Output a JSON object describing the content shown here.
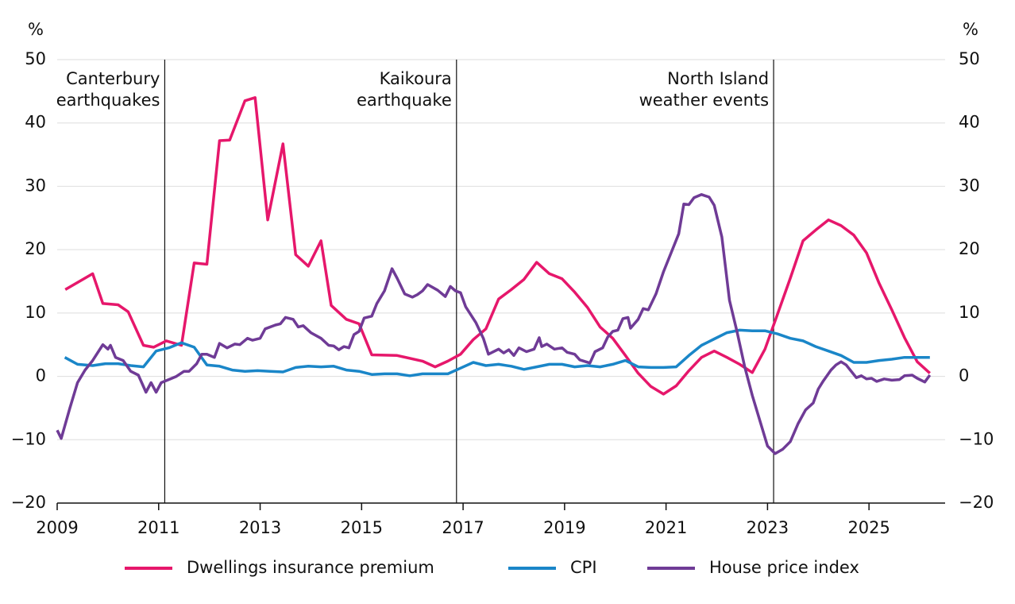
{
  "chart_data": {
    "type": "line",
    "y_unit": "%",
    "y2_unit": "%",
    "xlim": [
      2009,
      2026.5
    ],
    "xticks": [
      2009,
      2011,
      2013,
      2015,
      2017,
      2019,
      2021,
      2023,
      2025
    ],
    "ylim": [
      -20,
      50
    ],
    "yticks": [
      {
        "value": -20,
        "label": "−20"
      },
      {
        "value": -10,
        "label": "−10"
      },
      0,
      10,
      20,
      30,
      40,
      50
    ],
    "y2lim": [
      -20,
      50
    ],
    "y2ticks": [
      {
        "value": -20,
        "label": "−20"
      },
      {
        "value": -10,
        "label": "−10"
      },
      0,
      10,
      20,
      30,
      40,
      50
    ],
    "grid": true,
    "legend": "bottom",
    "annotations": [
      {
        "x": 2011.12,
        "text": [
          "Canterbury",
          "earthquakes"
        ]
      },
      {
        "x": 2016.87,
        "text": [
          "Kaikoura",
          "earthquake"
        ]
      },
      {
        "x": 2023.12,
        "text": [
          "North Island",
          "weather events"
        ]
      }
    ],
    "series": [
      {
        "name": "Dwellings insurance premium",
        "color": "#e6176b",
        "x": [
          2009.16,
          2009.7,
          2009.9,
          2010.2,
          2010.4,
          2010.7,
          2010.9,
          2011.15,
          2011.45,
          2011.7,
          2011.95,
          2012.2,
          2012.4,
          2012.7,
          2012.9,
          2013.15,
          2013.45,
          2013.7,
          2013.95,
          2014.2,
          2014.4,
          2014.7,
          2014.95,
          2015.2,
          2015.7,
          2016.2,
          2016.45,
          2016.7,
          2016.95,
          2017.2,
          2017.45,
          2017.7,
          2017.95,
          2018.2,
          2018.45,
          2018.7,
          2018.95,
          2019.2,
          2019.45,
          2019.7,
          2019.95,
          2020.2,
          2020.45,
          2020.7,
          2020.95,
          2021.2,
          2021.45,
          2021.7,
          2021.95,
          2022.2,
          2022.45,
          2022.7,
          2022.95,
          2023.2,
          2023.45,
          2023.7,
          2023.95,
          2024.2,
          2024.45,
          2024.7,
          2024.95,
          2025.2,
          2025.45,
          2025.7,
          2025.95,
          2026.2
        ],
        "values": [
          13.7,
          16.2,
          11.5,
          11.3,
          10.2,
          4.9,
          4.6,
          5.6,
          4.9,
          17.9,
          17.7,
          37.2,
          37.3,
          43.5,
          44,
          24.7,
          36.7,
          19.2,
          17.4,
          21.4,
          11.2,
          9.0,
          8.3,
          3.4,
          3.3,
          2.4,
          1.5,
          2.4,
          3.5,
          5.8,
          7.5,
          12.2,
          13.7,
          15.3,
          18,
          16.2,
          15.4,
          13.3,
          10.9,
          7.8,
          6.0,
          3.3,
          0.5,
          -1.6,
          -2.8,
          -1.5,
          0.9,
          3.0,
          4.0,
          3.0,
          1.9,
          0.6,
          4.3,
          9.9,
          15.5,
          21.4,
          23.1,
          24.7,
          23.8,
          22.3,
          19.5,
          14.7,
          10.5,
          6.1,
          2.3,
          0.5
        ]
      },
      {
        "name": "CPI",
        "color": "#1a86c8",
        "x": [
          2009.15,
          2009.4,
          2009.7,
          2009.95,
          2010.2,
          2010.45,
          2010.7,
          2010.95,
          2011.2,
          2011.45,
          2011.7,
          2011.95,
          2012.2,
          2012.45,
          2012.7,
          2012.95,
          2013.2,
          2013.45,
          2013.7,
          2013.95,
          2014.2,
          2014.45,
          2014.7,
          2014.95,
          2015.2,
          2015.45,
          2015.7,
          2015.95,
          2016.2,
          2016.45,
          2016.7,
          2016.95,
          2017.2,
          2017.45,
          2017.7,
          2017.95,
          2018.2,
          2018.45,
          2018.7,
          2018.95,
          2019.2,
          2019.45,
          2019.7,
          2019.95,
          2020.2,
          2020.45,
          2020.7,
          2020.95,
          2021.2,
          2021.45,
          2021.7,
          2021.95,
          2022.2,
          2022.45,
          2022.7,
          2022.95,
          2023.2,
          2023.45,
          2023.7,
          2023.95,
          2024.2,
          2024.45,
          2024.7,
          2024.95,
          2025.2,
          2025.45,
          2025.7,
          2025.95,
          2026.2
        ],
        "values": [
          3.0,
          1.9,
          1.7,
          2.0,
          2.0,
          1.7,
          1.5,
          4.0,
          4.5,
          5.3,
          4.6,
          1.8,
          1.6,
          1.0,
          0.8,
          0.9,
          0.8,
          0.7,
          1.4,
          1.6,
          1.5,
          1.6,
          1.0,
          0.8,
          0.3,
          0.4,
          0.4,
          0.1,
          0.4,
          0.4,
          0.4,
          1.3,
          2.2,
          1.7,
          1.9,
          1.6,
          1.1,
          1.5,
          1.9,
          1.9,
          1.5,
          1.7,
          1.5,
          1.9,
          2.5,
          1.5,
          1.4,
          1.4,
          1.5,
          3.3,
          4.9,
          5.9,
          6.9,
          7.3,
          7.2,
          7.2,
          6.7,
          6.0,
          5.6,
          4.7,
          4.0,
          3.3,
          2.2,
          2.2,
          2.5,
          2.7,
          3.0,
          3.0,
          3.0
        ]
      },
      {
        "name": "House price index",
        "color": "#6f3b96",
        "x": [
          2009.0,
          2009.08,
          2009.25,
          2009.4,
          2009.55,
          2009.7,
          2009.9,
          2010.0,
          2010.05,
          2010.15,
          2010.3,
          2010.45,
          2010.6,
          2010.75,
          2010.85,
          2010.95,
          2011.05,
          2011.2,
          2011.35,
          2011.5,
          2011.6,
          2011.75,
          2011.85,
          2011.95,
          2012.1,
          2012.2,
          2012.35,
          2012.5,
          2012.6,
          2012.75,
          2012.85,
          2013.0,
          2013.1,
          2013.3,
          2013.4,
          2013.5,
          2013.65,
          2013.75,
          2013.85,
          2014.0,
          2014.2,
          2014.35,
          2014.45,
          2014.55,
          2014.65,
          2014.75,
          2014.85,
          2014.95,
          2015.05,
          2015.2,
          2015.3,
          2015.45,
          2015.6,
          2015.7,
          2015.85,
          2016.0,
          2016.1,
          2016.2,
          2016.3,
          2016.5,
          2016.65,
          2016.75,
          2016.85,
          2016.95,
          2017.05,
          2017.25,
          2017.4,
          2017.5,
          2017.7,
          2017.8,
          2017.9,
          2018.0,
          2018.1,
          2018.25,
          2018.4,
          2018.5,
          2018.55,
          2018.65,
          2018.8,
          2018.95,
          2019.05,
          2019.2,
          2019.3,
          2019.5,
          2019.6,
          2019.75,
          2019.85,
          2019.95,
          2020.05,
          2020.15,
          2020.25,
          2020.3,
          2020.45,
          2020.55,
          2020.65,
          2020.8,
          2020.95,
          2021.1,
          2021.25,
          2021.35,
          2021.45,
          2021.55,
          2021.7,
          2021.85,
          2021.95,
          2022.1,
          2022.25,
          2022.4,
          2022.55,
          2022.7,
          2022.85,
          2023.0,
          2023.15,
          2023.3,
          2023.45,
          2023.6,
          2023.75,
          2023.9,
          2024.0,
          2024.1,
          2024.25,
          2024.35,
          2024.45,
          2024.55,
          2024.65,
          2024.75,
          2024.85,
          2024.95,
          2025.05,
          2025.15,
          2025.3,
          2025.45,
          2025.6,
          2025.7,
          2025.85,
          2025.95,
          2026.1,
          2026.2
        ],
        "values": [
          -8.5,
          -9.8,
          -5,
          -1,
          1,
          2.5,
          5,
          4.3,
          4.9,
          3.0,
          2.5,
          0.8,
          0.2,
          -2.5,
          -1,
          -2.5,
          -1,
          -0.5,
          0,
          0.8,
          0.8,
          2,
          3.5,
          3.5,
          3.0,
          5.2,
          4.5,
          5.1,
          5,
          6,
          5.7,
          6,
          7.5,
          8.1,
          8.3,
          9.3,
          9,
          7.8,
          8,
          6.9,
          6,
          4.9,
          4.8,
          4.2,
          4.7,
          4.5,
          6.6,
          7.1,
          9.2,
          9.5,
          11.5,
          13.5,
          17,
          15.5,
          13,
          12.5,
          12.9,
          13.5,
          14.5,
          13.6,
          12.6,
          14.2,
          13.5,
          13.2,
          11,
          8.5,
          6,
          3.5,
          4.3,
          3.7,
          4.2,
          3.3,
          4.5,
          3.9,
          4.3,
          6.1,
          4.7,
          5.1,
          4.3,
          4.5,
          3.8,
          3.5,
          2.6,
          2.1,
          3.9,
          4.5,
          6.2,
          7.1,
          7.3,
          9.1,
          9.3,
          7.6,
          9,
          10.7,
          10.5,
          13,
          16.5,
          19.5,
          22.5,
          27.2,
          27.1,
          28.2,
          28.7,
          28.3,
          27,
          22,
          12,
          7,
          1.5,
          -3,
          -7,
          -11,
          -12.2,
          -11.5,
          -10.3,
          -7.5,
          -5.3,
          -4.2,
          -2,
          -0.7,
          1.0,
          1.8,
          2.3,
          1.8,
          0.8,
          -0.2,
          0.1,
          -0.4,
          -0.3,
          -0.8,
          -0.4,
          -0.6,
          -0.5,
          0.1,
          0.2,
          -0.3,
          -0.9,
          0.2
        ]
      }
    ]
  }
}
